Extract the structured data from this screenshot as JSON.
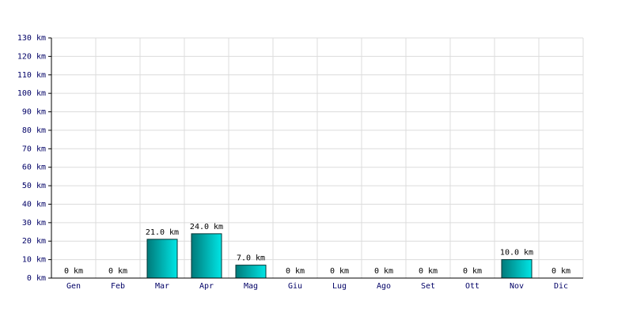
{
  "chart_data": {
    "type": "bar",
    "categories": [
      "Gen",
      "Feb",
      "Mar",
      "Apr",
      "Mag",
      "Giu",
      "Lug",
      "Ago",
      "Set",
      "Ott",
      "Nov",
      "Dic"
    ],
    "values": [
      0,
      0,
      21,
      24,
      7,
      0,
      0,
      0,
      0,
      0,
      10,
      0
    ],
    "value_labels": [
      "0 km",
      "0 km",
      "21.0 km",
      "24.0 km",
      "7.0 km",
      "0 km",
      "0 km",
      "0 km",
      "0 km",
      "0 km",
      "10.0 km",
      "0 km"
    ],
    "color": "#00e5e5",
    "ylim": [
      0,
      130
    ],
    "yticks": [
      {
        "value": 0,
        "label": "0 km"
      },
      {
        "value": 10,
        "label": "10 km"
      },
      {
        "value": 20,
        "label": "20 km"
      },
      {
        "value": 30,
        "label": "30 km"
      },
      {
        "value": 40,
        "label": "40 km"
      },
      {
        "value": 50,
        "label": "50 km"
      },
      {
        "value": 60,
        "label": "60 km"
      },
      {
        "value": 70,
        "label": "70 km"
      },
      {
        "value": 80,
        "label": "80 km"
      },
      {
        "value": 90,
        "label": "90 km"
      },
      {
        "value": 100,
        "label": "100 km"
      },
      {
        "value": 110,
        "label": "110 km"
      },
      {
        "value": 120,
        "label": "120 km"
      },
      {
        "value": 130,
        "label": "130 km"
      }
    ],
    "grid": true
  }
}
